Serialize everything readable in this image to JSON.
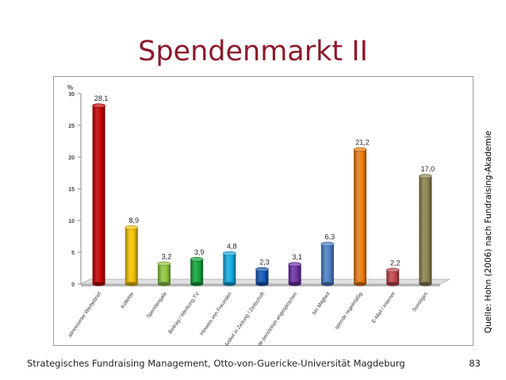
{
  "slide": {
    "title": "Spendenmarkt II",
    "source": "Quelle: Hohn (2006) nach Fundraising-Akademie",
    "footer": "Strategisches Fundraising Management, Otto-von-Guericke-Universität Magdeburg",
    "page_number": "83"
  },
  "chart_data": {
    "type": "bar",
    "title": "",
    "xlabel": "",
    "ylabel": "%",
    "ylim": [
      0,
      30
    ],
    "yticks": [
      0,
      5,
      10,
      15,
      20,
      25,
      30
    ],
    "grid": false,
    "categories": [
      "adressierter Werbebrief",
      "Kollekte",
      "Spendengala",
      "Beitrag / Werbung TV",
      "Hinweis von Freunden",
      "Artikel in Zeitung / Zeitschrift",
      "wurde persönlich angesprochen",
      "bin Mitglied",
      "spende regelmäßig",
      "E-Mail / Internet",
      "Sonstiges"
    ],
    "values": [
      28.1,
      8.9,
      3.2,
      3.9,
      4.8,
      2.3,
      3.1,
      6.3,
      21.2,
      2.2,
      17.0
    ],
    "data_labels": [
      "28,1",
      "8,9",
      "3,2",
      "3,9",
      "4,8",
      "2,3",
      "3,1",
      "6,3",
      "21,2",
      "2,2",
      "17,0"
    ],
    "colors": [
      "#c00000",
      "#f2c200",
      "#8dc63f",
      "#12a33a",
      "#12a9e0",
      "#1256b5",
      "#6b2fa3",
      "#4a7cc4",
      "#ee7a0f",
      "#c0454a",
      "#8b8050"
    ]
  }
}
